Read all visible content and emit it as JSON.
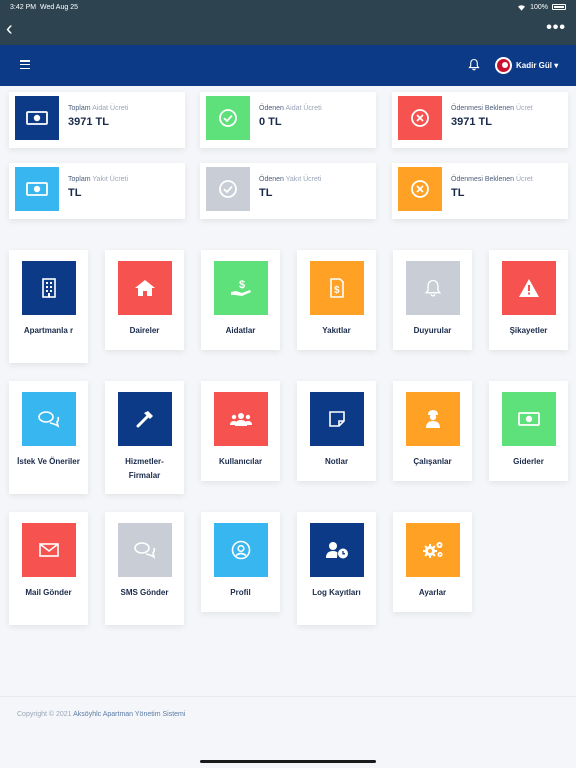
{
  "status_bar": {
    "time": "3:42 PM",
    "date": "Wed Aug 25",
    "battery": "100%"
  },
  "header": {
    "user_name": "Kadir Gül"
  },
  "colors": {
    "navy": "#0d3a86",
    "red": "#f6524f",
    "green": "#5ee07a",
    "orange": "#ffa124",
    "grey": "#c9ced6",
    "blue": "#37b6f0"
  },
  "stats": [
    {
      "label_main": "Toplam",
      "label_rest": " Aidat Ücreti",
      "value": "3971 TL",
      "icon": "money-icon",
      "color": "#0d3a86"
    },
    {
      "label_main": "Ödenen",
      "label_rest": " Aidat Ücreti",
      "value": "0 TL",
      "icon": "check-circle-icon",
      "color": "#5ee07a"
    },
    {
      "label_main": "Ödenmesi Beklenen",
      "label_rest": " Ücret",
      "value": "3971 TL",
      "icon": "x-circle-icon",
      "color": "#f6524f"
    },
    {
      "label_main": "Toplam",
      "label_rest": " Yakıt Ücreti",
      "value": "TL",
      "icon": "money-icon",
      "color": "#37b6f0"
    },
    {
      "label_main": "Ödenen",
      "label_rest": " Yakıt Ücreti",
      "value": "TL",
      "icon": "check-circle-icon",
      "color": "#c9ced6"
    },
    {
      "label_main": "Ödenmesi Beklenen",
      "label_rest": " Ücret",
      "value": "TL",
      "icon": "x-circle-icon",
      "color": "#ffa124"
    }
  ],
  "tiles": [
    {
      "label": "Apartmanla r",
      "icon": "building-icon",
      "color": "#0d3a86"
    },
    {
      "label": "Daireler",
      "icon": "home-icon",
      "color": "#f6524f"
    },
    {
      "label": "Aidatlar",
      "icon": "hand-dollar-icon",
      "color": "#5ee07a"
    },
    {
      "label": "Yakıtlar",
      "icon": "invoice-icon",
      "color": "#ffa124"
    },
    {
      "label": "Duyurular",
      "icon": "bell-icon",
      "color": "#c9ced6"
    },
    {
      "label": "Şikayetler",
      "icon": "warning-icon",
      "color": "#f6524f"
    },
    {
      "label": "İstek Ve Öneriler",
      "icon": "chat-icon",
      "color": "#37b6f0"
    },
    {
      "label": "Hizmetler-Firmalar",
      "icon": "hammer-icon",
      "color": "#0d3a86"
    },
    {
      "label": "Kullanıcılar",
      "icon": "users-icon",
      "color": "#f6524f"
    },
    {
      "label": "Notlar",
      "icon": "note-icon",
      "color": "#0d3a86"
    },
    {
      "label": "Çalışanlar",
      "icon": "worker-icon",
      "color": "#ffa124"
    },
    {
      "label": "Giderler",
      "icon": "money-icon",
      "color": "#5ee07a"
    },
    {
      "label": "Mail Gönder",
      "icon": "mail-icon",
      "color": "#f6524f"
    },
    {
      "label": "SMS Gönder",
      "icon": "chat-icon",
      "color": "#c9ced6"
    },
    {
      "label": "Profil",
      "icon": "user-circle-icon",
      "color": "#37b6f0"
    },
    {
      "label": "Log Kayıtları",
      "icon": "user-clock-icon",
      "color": "#0d3a86"
    },
    {
      "label": "Ayarlar",
      "icon": "gears-icon",
      "color": "#ffa124"
    }
  ],
  "footer": {
    "prefix": "Copyright © 2021 ",
    "brand": "Aksöyhlc Apartman Yönetim Sistemi"
  }
}
